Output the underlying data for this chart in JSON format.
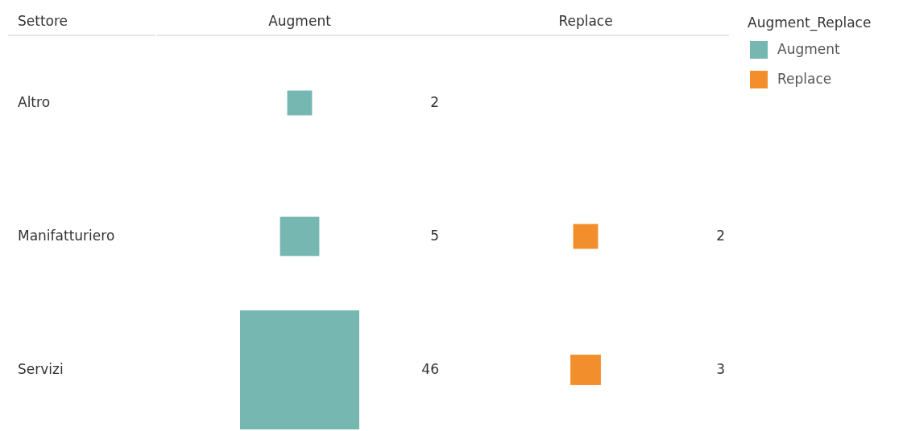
{
  "chart_data": {
    "type": "other",
    "ylabel": "Settore",
    "legend_title": "Augment_Replace",
    "legend": "top right",
    "data_labels": true,
    "categories": [
      "Altro",
      "Manifatturiero",
      "Servizi"
    ],
    "series": [
      {
        "name": "Augment",
        "color": "#76b7b2",
        "values": [
          2,
          5,
          46
        ]
      },
      {
        "name": "Replace",
        "color": "#f28e2b",
        "values": [
          null,
          2,
          3
        ]
      }
    ]
  }
}
